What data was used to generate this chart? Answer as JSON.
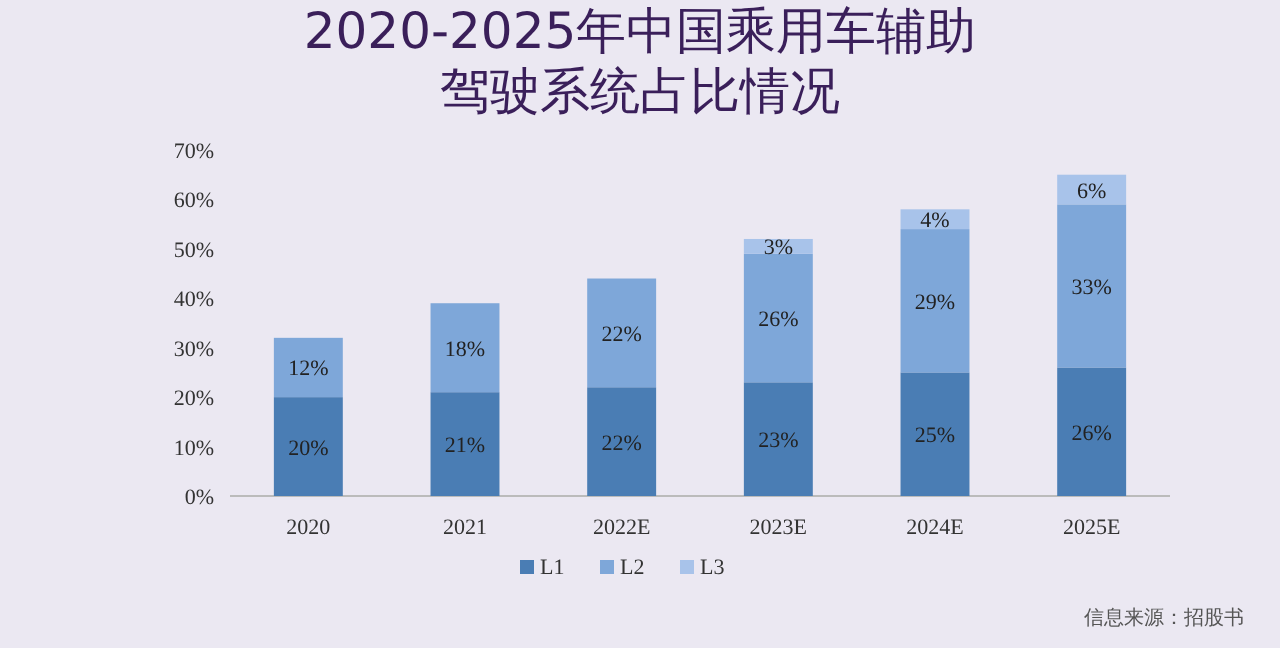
{
  "chart_data": {
    "type": "bar",
    "title": "2020-2025年中国乘用车辅助驾驶系统占比情况",
    "categories": [
      "2020",
      "2021",
      "2022E",
      "2023E",
      "2024E",
      "2025E"
    ],
    "stacked": true,
    "series": [
      {
        "name": "L1",
        "color": "#4a7db4",
        "values": [
          20,
          21,
          22,
          23,
          25,
          26
        ],
        "value_labels": [
          "20%",
          "21%",
          "22%",
          "23%",
          "25%",
          "26%"
        ]
      },
      {
        "name": "L2",
        "color": "#7ea7d9",
        "values": [
          12,
          18,
          22,
          26,
          29,
          33
        ],
        "value_labels": [
          "12%",
          "18%",
          "22%",
          "26%",
          "29%",
          "33%"
        ]
      },
      {
        "name": "L3",
        "color": "#a8c3ea",
        "values": [
          null,
          null,
          null,
          3,
          4,
          6
        ],
        "value_labels": [
          null,
          null,
          null,
          "3%",
          "4%",
          "6%"
        ]
      }
    ],
    "ylim": [
      0,
      70
    ],
    "yticks": [
      {
        "value": 0,
        "label": "0%"
      },
      {
        "value": 10,
        "label": "10%"
      },
      {
        "value": 20,
        "label": "20%"
      },
      {
        "value": 30,
        "label": "30%"
      },
      {
        "value": 40,
        "label": "40%"
      },
      {
        "value": 50,
        "label": "50%"
      },
      {
        "value": 60,
        "label": "60%"
      },
      {
        "value": 70,
        "label": "70%"
      }
    ],
    "legend": "bottom",
    "annotations": [
      "信息来源：招股书"
    ]
  }
}
